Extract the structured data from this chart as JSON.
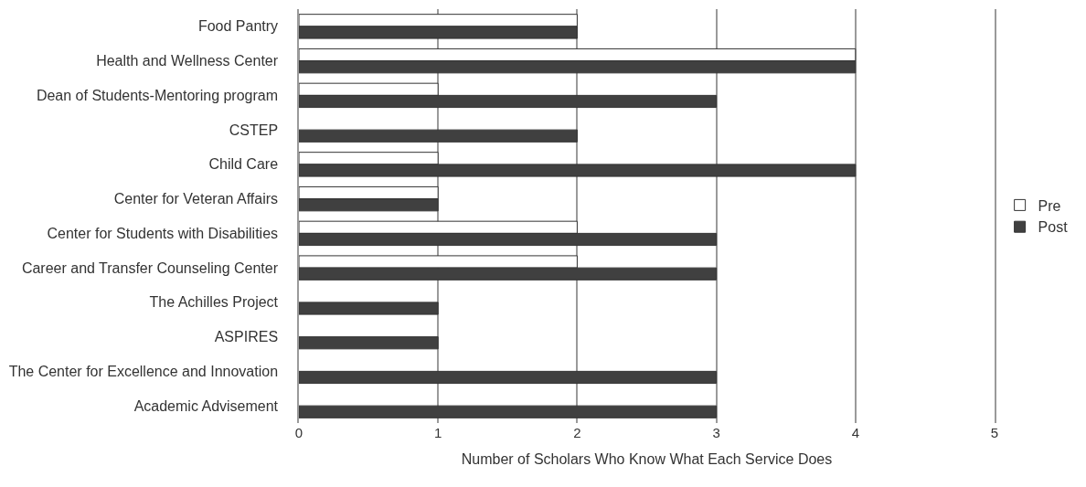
{
  "chart_data": {
    "type": "bar",
    "orientation": "horizontal",
    "xlabel": "Number of Scholars Who Know What Each Service Does",
    "categories": [
      "Food Pantry",
      "Health and Wellness Center",
      "Dean of Students-Mentoring program",
      "CSTEP",
      "Child Care",
      "Center for Veteran Affairs",
      "Center for Students with Disabilities",
      "Career and Transfer Counseling Center",
      "The Achilles Project",
      "ASPIRES",
      "The Center for Excellence and Innovation",
      "Academic Advisement"
    ],
    "series": [
      {
        "name": "Pre",
        "color": "#ffffff",
        "values": [
          2,
          4,
          1,
          0,
          1,
          1,
          2,
          2,
          0,
          0,
          0,
          0
        ]
      },
      {
        "name": "Post",
        "color": "#404040",
        "values": [
          2,
          4,
          3,
          2,
          4,
          1,
          3,
          3,
          1,
          1,
          3,
          3
        ]
      }
    ],
    "xlim": [
      0,
      5
    ],
    "xticks": [
      0,
      1,
      2,
      3,
      4,
      5
    ],
    "grid": "x",
    "legend": "right"
  }
}
